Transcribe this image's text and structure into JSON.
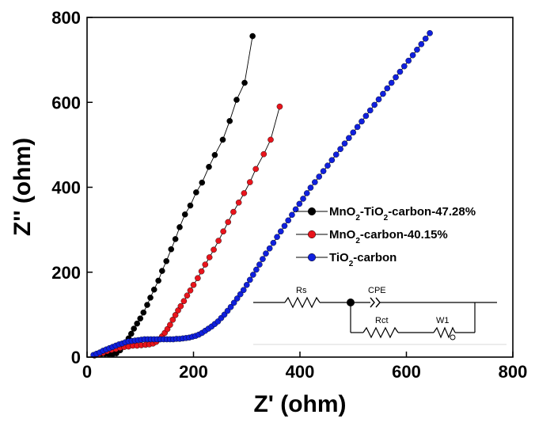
{
  "chart_data": {
    "type": "scatter",
    "title": "",
    "xlabel": "Z' (ohm)",
    "ylabel": "Z'' (ohm)",
    "xlim": [
      0,
      800
    ],
    "ylim": [
      0,
      800
    ],
    "x_ticks": [
      "0",
      "200",
      "400",
      "600",
      "800"
    ],
    "y_ticks": [
      "0",
      "200",
      "400",
      "600",
      "800"
    ],
    "grid": false,
    "legend_position": "right-center",
    "series": [
      {
        "name_parts": [
          "MnO",
          "2",
          "-TiO",
          "2",
          "-carbon-47.28%"
        ],
        "color": "#000000",
        "points": [
          [
            14,
            4
          ],
          [
            20,
            6
          ],
          [
            27,
            8
          ],
          [
            34,
            8
          ],
          [
            41,
            7
          ],
          [
            48,
            7
          ],
          [
            55,
            9
          ],
          [
            62,
            16
          ],
          [
            68,
            25
          ],
          [
            73,
            34
          ],
          [
            78,
            44
          ],
          [
            83,
            55
          ],
          [
            88,
            67
          ],
          [
            94,
            79
          ],
          [
            100,
            91
          ],
          [
            106,
            105
          ],
          [
            113,
            123
          ],
          [
            119,
            140
          ],
          [
            126,
            159
          ],
          [
            134,
            180
          ],
          [
            141,
            203
          ],
          [
            149,
            226
          ],
          [
            158,
            254
          ],
          [
            166,
            278
          ],
          [
            174,
            306
          ],
          [
            184,
            336
          ],
          [
            194,
            357
          ],
          [
            205,
            388
          ],
          [
            216,
            411
          ],
          [
            229,
            448
          ],
          [
            240,
            476
          ],
          [
            255,
            512
          ],
          [
            268,
            556
          ],
          [
            281,
            606
          ],
          [
            296,
            646
          ],
          [
            311,
            756
          ]
        ]
      },
      {
        "name_parts": [
          "MnO",
          "2",
          "-carbon-40.15%"
        ],
        "color": "#e8141c",
        "points": [
          [
            14,
            4
          ],
          [
            22,
            7
          ],
          [
            30,
            10
          ],
          [
            38,
            14
          ],
          [
            46,
            17
          ],
          [
            54,
            19
          ],
          [
            62,
            22
          ],
          [
            70,
            24
          ],
          [
            78,
            25
          ],
          [
            86,
            27
          ],
          [
            94,
            27
          ],
          [
            102,
            28
          ],
          [
            110,
            29
          ],
          [
            117,
            30
          ],
          [
            124,
            32
          ],
          [
            130,
            36
          ],
          [
            136,
            42
          ],
          [
            141,
            49
          ],
          [
            146,
            57
          ],
          [
            151,
            66
          ],
          [
            156,
            76
          ],
          [
            161,
            88
          ],
          [
            166,
            99
          ],
          [
            171,
            110
          ],
          [
            176,
            120
          ],
          [
            182,
            132
          ],
          [
            188,
            145
          ],
          [
            194,
            157
          ],
          [
            200,
            170
          ],
          [
            208,
            186
          ],
          [
            215,
            202
          ],
          [
            222,
            218
          ],
          [
            230,
            235
          ],
          [
            238,
            253
          ],
          [
            247,
            274
          ],
          [
            256,
            296
          ],
          [
            265,
            318
          ],
          [
            275,
            342
          ],
          [
            285,
            364
          ],
          [
            295,
            386
          ],
          [
            306,
            412
          ],
          [
            317,
            443
          ],
          [
            332,
            478
          ],
          [
            345,
            512
          ],
          [
            362,
            590
          ]
        ]
      },
      {
        "name_parts": [
          "TiO",
          "2",
          "-carbon"
        ],
        "color": "#1020dd",
        "points": [
          [
            12,
            5
          ],
          [
            18,
            8
          ],
          [
            24,
            11
          ],
          [
            30,
            15
          ],
          [
            36,
            18
          ],
          [
            42,
            21
          ],
          [
            48,
            24
          ],
          [
            54,
            27
          ],
          [
            60,
            30
          ],
          [
            66,
            32
          ],
          [
            72,
            35
          ],
          [
            78,
            37
          ],
          [
            84,
            38
          ],
          [
            90,
            39
          ],
          [
            96,
            40
          ],
          [
            102,
            41
          ],
          [
            108,
            42
          ],
          [
            114,
            42
          ],
          [
            120,
            42
          ],
          [
            126,
            42
          ],
          [
            132,
            42
          ],
          [
            138,
            42
          ],
          [
            144,
            42
          ],
          [
            150,
            42
          ],
          [
            156,
            42
          ],
          [
            162,
            42
          ],
          [
            168,
            43
          ],
          [
            174,
            43
          ],
          [
            180,
            44
          ],
          [
            186,
            45
          ],
          [
            192,
            46
          ],
          [
            198,
            48
          ],
          [
            204,
            50
          ],
          [
            210,
            53
          ],
          [
            216,
            57
          ],
          [
            222,
            62
          ],
          [
            228,
            67
          ],
          [
            234,
            72
          ],
          [
            240,
            78
          ],
          [
            246,
            84
          ],
          [
            252,
            92
          ],
          [
            258,
            100
          ],
          [
            264,
            109
          ],
          [
            270,
            118
          ],
          [
            276,
            128
          ],
          [
            282,
            138
          ],
          [
            288,
            148
          ],
          [
            294,
            158
          ],
          [
            300,
            170
          ],
          [
            306,
            182
          ],
          [
            312,
            194
          ],
          [
            318,
            206
          ],
          [
            324,
            218
          ],
          [
            330,
            231
          ],
          [
            336,
            244
          ],
          [
            343,
            256
          ],
          [
            350,
            269
          ],
          [
            357,
            283
          ],
          [
            364,
            296
          ],
          [
            371,
            309
          ],
          [
            378,
            322
          ],
          [
            385,
            335
          ],
          [
            392,
            348
          ],
          [
            399,
            361
          ],
          [
            406,
            373
          ],
          [
            413,
            386
          ],
          [
            420,
            399
          ],
          [
            428,
            412
          ],
          [
            436,
            425
          ],
          [
            444,
            438
          ],
          [
            452,
            451
          ],
          [
            460,
            464
          ],
          [
            468,
            477
          ],
          [
            476,
            490
          ],
          [
            484,
            503
          ],
          [
            492,
            516
          ],
          [
            500,
            529
          ],
          [
            508,
            542
          ],
          [
            516,
            555
          ],
          [
            524,
            568
          ],
          [
            532,
            581
          ],
          [
            540,
            594
          ],
          [
            548,
            607
          ],
          [
            556,
            620
          ],
          [
            564,
            633
          ],
          [
            572,
            646
          ],
          [
            580,
            659
          ],
          [
            588,
            672
          ],
          [
            596,
            685
          ],
          [
            604,
            698
          ],
          [
            612,
            711
          ],
          [
            620,
            724
          ],
          [
            628,
            737
          ],
          [
            636,
            750
          ],
          [
            644,
            763
          ]
        ]
      }
    ],
    "inset_circuit": {
      "labels": [
        "Rs",
        "CPE",
        "Rct",
        "W1"
      ]
    }
  }
}
